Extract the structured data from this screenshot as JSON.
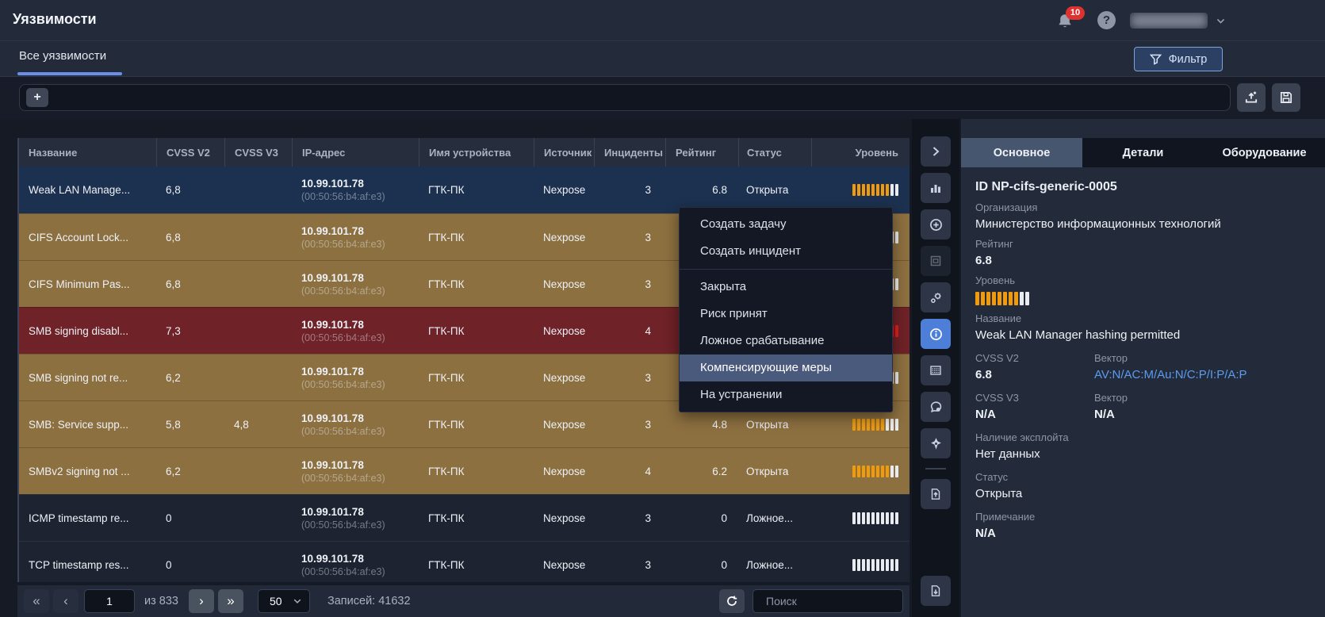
{
  "topbar": {
    "title": "Уязвимости",
    "notifications_badge": "10",
    "help_glyph": "?"
  },
  "tabs": {
    "all_label": "Все уязвимости"
  },
  "filter": {
    "button_label": "Фильтр",
    "add_glyph": "+"
  },
  "table": {
    "columns": [
      "Название",
      "CVSS V2",
      "CVSS V3",
      "IP-адрес",
      "Имя устройства",
      "Источник",
      "Инциденты",
      "Рейтинг",
      "Статус",
      "Уровень"
    ],
    "rows": [
      {
        "name": "Weak LAN Manage...",
        "cvss2": "6,8",
        "cvss3": "",
        "ip": "10.99.101.78",
        "mac": "(00:50:56:b4:af:e3)",
        "device": "ГТК-ПК",
        "source": "Nexpose",
        "incidents": "3",
        "rating": "6.8",
        "status": "Открыта",
        "variant": "selected",
        "level": {
          "filled": 8,
          "total": 10,
          "color": "orange"
        }
      },
      {
        "name": "CIFS Account Lock...",
        "cvss2": "6,8",
        "cvss3": "",
        "ip": "10.99.101.78",
        "mac": "(00:50:56:b4:af:e3)",
        "device": "ГТК-ПК",
        "source": "Nexpose",
        "incidents": "3",
        "rating": "",
        "status": "",
        "variant": "gold",
        "level": {
          "filled": 8,
          "total": 10,
          "color": "orange"
        }
      },
      {
        "name": "CIFS Minimum Pas...",
        "cvss2": "6,8",
        "cvss3": "",
        "ip": "10.99.101.78",
        "mac": "(00:50:56:b4:af:e3)",
        "device": "ГТК-ПК",
        "source": "Nexpose",
        "incidents": "3",
        "rating": "",
        "status": "",
        "variant": "gold",
        "level": {
          "filled": 8,
          "total": 10,
          "color": "orange"
        }
      },
      {
        "name": "SMB signing disabl...",
        "cvss2": "7,3",
        "cvss3": "",
        "ip": "10.99.101.78",
        "mac": "(00:50:56:b4:af:e3)",
        "device": "ГТК-ПК",
        "source": "Nexpose",
        "incidents": "4",
        "rating": "",
        "status": "",
        "variant": "red",
        "level": {
          "filled": 10,
          "total": 10,
          "color": "red"
        }
      },
      {
        "name": "SMB signing not re...",
        "cvss2": "6,2",
        "cvss3": "",
        "ip": "10.99.101.78",
        "mac": "(00:50:56:b4:af:e3)",
        "device": "ГТК-ПК",
        "source": "Nexpose",
        "incidents": "3",
        "rating": "",
        "status": "",
        "variant": "gold",
        "level": {
          "filled": 8,
          "total": 10,
          "color": "orange"
        }
      },
      {
        "name": "SMB: Service supp...",
        "cvss2": "5,8",
        "cvss3": "4,8",
        "ip": "10.99.101.78",
        "mac": "(00:50:56:b4:af:e3)",
        "device": "ГТК-ПК",
        "source": "Nexpose",
        "incidents": "3",
        "rating": "4.8",
        "status": "Открыта",
        "variant": "gold",
        "level": {
          "filled": 7,
          "total": 10,
          "color": "orange"
        }
      },
      {
        "name": "SMBv2 signing not ...",
        "cvss2": "6,2",
        "cvss3": "",
        "ip": "10.99.101.78",
        "mac": "(00:50:56:b4:af:e3)",
        "device": "ГТК-ПК",
        "source": "Nexpose",
        "incidents": "4",
        "rating": "6.2",
        "status": "Открыта",
        "variant": "gold",
        "level": {
          "filled": 8,
          "total": 10,
          "color": "orange"
        }
      },
      {
        "name": "ICMP timestamp re...",
        "cvss2": "0",
        "cvss3": "",
        "ip": "10.99.101.78",
        "mac": "(00:50:56:b4:af:e3)",
        "device": "ГТК-ПК",
        "source": "Nexpose",
        "incidents": "3",
        "rating": "0",
        "status": "Ложное...",
        "variant": "dark",
        "level": {
          "filled": 0,
          "total": 10,
          "color": "orange"
        }
      },
      {
        "name": "TCP timestamp res...",
        "cvss2": "0",
        "cvss3": "",
        "ip": "10.99.101.78",
        "mac": "(00:50:56:b4:af:e3)",
        "device": "ГТК-ПК",
        "source": "Nexpose",
        "incidents": "3",
        "rating": "0",
        "status": "Ложное...",
        "variant": "dark",
        "level": {
          "filled": 0,
          "total": 10,
          "color": "orange"
        }
      }
    ]
  },
  "context_menu": {
    "items": [
      {
        "label": "Создать задачу"
      },
      {
        "label": "Создать инцидент",
        "divider_after": true
      },
      {
        "label": "Закрыта"
      },
      {
        "label": "Риск принят"
      },
      {
        "label": "Ложное срабатывание"
      },
      {
        "label": "Компенсирующие меры",
        "highlighted": true
      },
      {
        "label": "На устранении"
      }
    ]
  },
  "details": {
    "tabs": [
      {
        "label": "Основное",
        "active": true
      },
      {
        "label": "Детали",
        "active": false
      },
      {
        "label": "Оборудование",
        "active": false
      }
    ],
    "id_label": "ID",
    "id_value": "NP-cifs-generic-0005",
    "org_label": "Организация",
    "org_value": "Министерство информационных технологий",
    "rating_label": "Рейтинг",
    "rating_value": "6.8",
    "level_label": "Уровень",
    "level": {
      "filled": 8,
      "total": 10,
      "color": "orange"
    },
    "name_label": "Название",
    "name_value": "Weak LAN Manager hashing permitted",
    "cvss2_label": "CVSS V2",
    "cvss2_value": "6.8",
    "vector_label": "Вектор",
    "cvss2_vector": "AV:N/AC:M/Au:N/C:P/I:P/A:P",
    "cvss3_label": "CVSS V3",
    "cvss3_value": "N/A",
    "cvss3_vector": "N/A",
    "exploit_label": "Наличие эксплойта",
    "exploit_value": "Нет данных",
    "status_label": "Статус",
    "status_value": "Открыта",
    "note_label": "Примечание",
    "note_value": "N/A"
  },
  "pagination": {
    "first_glyph": "«",
    "prev_glyph": "‹",
    "page": "1",
    "of_label": "из 833",
    "next_glyph": "›",
    "last_glyph": "»",
    "page_size": "50",
    "records_label": "Записей:",
    "records_value": "41632",
    "search_placeholder": "Поиск"
  },
  "colors": {
    "accent_blue": "#6b8fe8",
    "selected_row": "#1c3150",
    "warning_row": "#8d7040",
    "critical_row": "#6f2228",
    "level_orange": "#f09a0c",
    "level_red": "#e01e1e",
    "badge_red": "#e03131",
    "vector_link": "#5b9bf0"
  }
}
